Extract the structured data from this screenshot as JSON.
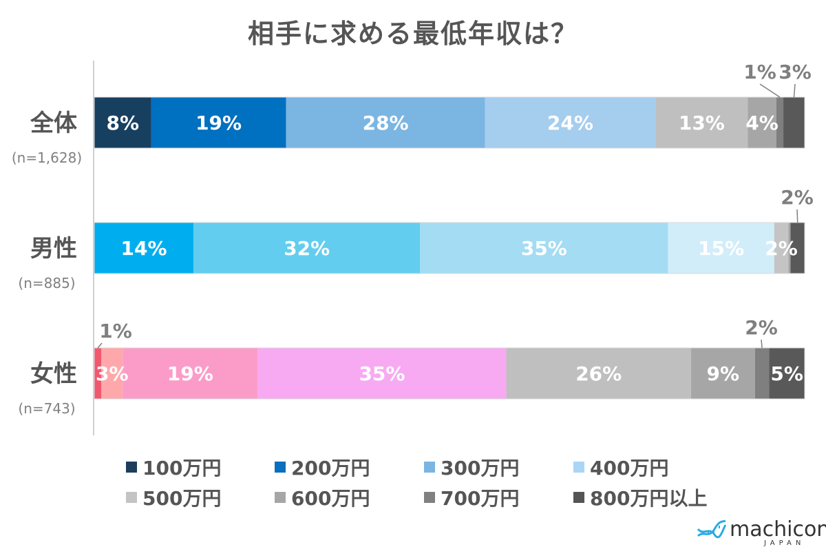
{
  "title": "相手に求める最低年収は？",
  "chart_data": {
    "type": "bar",
    "orientation": "horizontal",
    "stacked": true,
    "normalized": true,
    "title": "相手に求める最低年収は？",
    "categories": [
      {
        "label": "全体",
        "sample": "(n=1,628)"
      },
      {
        "label": "男性",
        "sample": "(n=885)"
      },
      {
        "label": "女性",
        "sample": "(n=743)"
      }
    ],
    "legend_position": "bottom",
    "series_names": [
      "100万円",
      "200万円",
      "300万円",
      "400万円",
      "500万円",
      "600万円",
      "700万円",
      "800万円以上"
    ],
    "legend_colors": [
      "#1a3e5c",
      "#0a6fbf",
      "#7ab5e3",
      "#a9d6f5",
      "#c4c4c4",
      "#a6a6a6",
      "#808080",
      "#555555"
    ],
    "rows": [
      {
        "segments": [
          {
            "value": 8,
            "label": "8%",
            "color": "#173f60",
            "label_color": "#ffffff"
          },
          {
            "value": 19,
            "label": "19%",
            "color": "#0070c0",
            "label_color": "#ffffff"
          },
          {
            "value": 28,
            "label": "28%",
            "color": "#7bb5e2",
            "label_color": "#ffffff"
          },
          {
            "value": 24,
            "label": "24%",
            "color": "#a5cdee",
            "label_color": "#ffffff"
          },
          {
            "value": 13,
            "label": "13%",
            "color": "#bfbfbf",
            "label_color": "#ffffff"
          },
          {
            "value": 4,
            "label": "4%",
            "color": "#a6a6a6",
            "label_color": "#ffffff"
          },
          {
            "value": 1,
            "label": "1%",
            "color": "#7f7f7f",
            "label_color": "#7f7f7f",
            "outside": true
          },
          {
            "value": 3,
            "label": "3%",
            "color": "#595959",
            "label_color": "#7f7f7f",
            "outside": true
          }
        ]
      },
      {
        "segments": [
          {
            "value": 14,
            "label": "14%",
            "color": "#00aef0",
            "label_color": "#ffffff"
          },
          {
            "value": 32,
            "label": "32%",
            "color": "#62cdee",
            "label_color": "#ffffff"
          },
          {
            "value": 35,
            "label": "35%",
            "color": "#a3dcf3",
            "label_color": "#ffffff"
          },
          {
            "value": 15,
            "label": "15%",
            "color": "#d1edf9",
            "label_color": "#ffffff"
          },
          {
            "value": 2,
            "label": "2%",
            "color": "#c4c4c4",
            "label_color": "#ffffff"
          },
          {
            "value": 0.3,
            "label": "",
            "color": "#a6a6a6",
            "label_color": "#ffffff"
          },
          {
            "value": 2,
            "label": "2%",
            "color": "#595959",
            "label_color": "#7f7f7f",
            "outside": true
          }
        ]
      },
      {
        "segments": [
          {
            "value": 1,
            "label": "1%",
            "color": "#f2576e",
            "label_color": "#7f7f7f",
            "outside": true
          },
          {
            "value": 3,
            "label": "3%",
            "color": "#ffa8ab",
            "label_color": "#ffffff"
          },
          {
            "value": 19,
            "label": "19%",
            "color": "#fb9cc8",
            "label_color": "#ffffff"
          },
          {
            "value": 35,
            "label": "35%",
            "color": "#f7aaf1",
            "label_color": "#ffffff"
          },
          {
            "value": 26,
            "label": "26%",
            "color": "#bfbfbf",
            "label_color": "#ffffff"
          },
          {
            "value": 9,
            "label": "9%",
            "color": "#a6a6a6",
            "label_color": "#ffffff"
          },
          {
            "value": 2,
            "label": "2%",
            "color": "#7f7f7f",
            "label_color": "#7f7f7f",
            "outside": true
          },
          {
            "value": 5,
            "label": "5%",
            "color": "#595959",
            "label_color": "#ffffff"
          }
        ]
      }
    ]
  },
  "logo": {
    "name": "machicon",
    "sub": "JAPAN",
    "color": "#29abe2"
  }
}
